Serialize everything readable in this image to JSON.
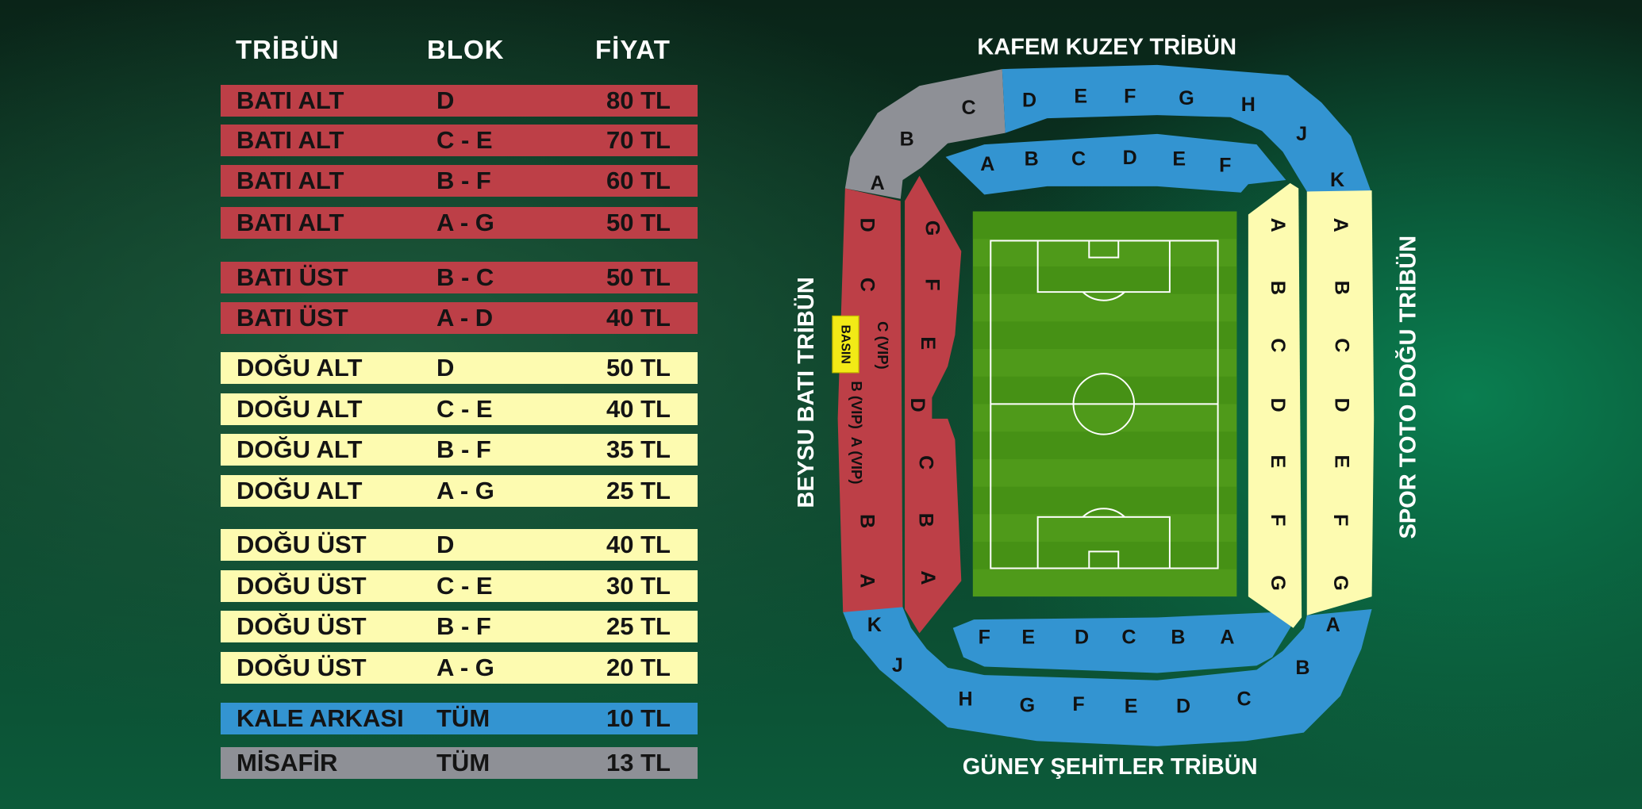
{
  "colors": {
    "bati": "#bd3f47",
    "dogu": "#fdfbb0",
    "kale_arkasi": "#3394d1",
    "misafir": "#8e9096",
    "pitch": "#4f9a1a",
    "basin": "#f2ea16"
  },
  "table": {
    "headers": {
      "tribune": "TRİBÜN",
      "block": "BLOK",
      "price": "FİYAT"
    },
    "rows": [
      {
        "tribune": "BATI ALT",
        "block": "D",
        "price": "80 TL",
        "group": "bati"
      },
      {
        "tribune": "BATI ALT",
        "block": "C - E",
        "price": "70 TL",
        "group": "bati"
      },
      {
        "tribune": "BATI ALT",
        "block": "B - F",
        "price": "60 TL",
        "group": "bati"
      },
      {
        "tribune": "BATI ALT",
        "block": "A - G",
        "price": "50 TL",
        "group": "bati"
      },
      {
        "tribune": "BATI ÜST",
        "block": "B - C",
        "price": "50 TL",
        "group": "bati"
      },
      {
        "tribune": "BATI ÜST",
        "block": "A - D",
        "price": "40 TL",
        "group": "bati"
      },
      {
        "tribune": "DOĞU ALT",
        "block": "D",
        "price": "50 TL",
        "group": "dogu"
      },
      {
        "tribune": "DOĞU ALT",
        "block": "C - E",
        "price": "40 TL",
        "group": "dogu"
      },
      {
        "tribune": "DOĞU ALT",
        "block": "B - F",
        "price": "35 TL",
        "group": "dogu"
      },
      {
        "tribune": "DOĞU ALT",
        "block": "A - G",
        "price": "25 TL",
        "group": "dogu"
      },
      {
        "tribune": "DOĞU ÜST",
        "block": "D",
        "price": "40 TL",
        "group": "dogu"
      },
      {
        "tribune": "DOĞU ÜST",
        "block": "C - E",
        "price": "30 TL",
        "group": "dogu"
      },
      {
        "tribune": "DOĞU ÜST",
        "block": "B - F",
        "price": "25 TL",
        "group": "dogu"
      },
      {
        "tribune": "DOĞU ÜST",
        "block": "A - G",
        "price": "20 TL",
        "group": "dogu"
      },
      {
        "tribune": "KALE ARKASI",
        "block": "TÜM",
        "price": "10 TL",
        "group": "kale_arkasi"
      },
      {
        "tribune": "MİSAFİR",
        "block": "TÜM",
        "price": "13 TL",
        "group": "misafir"
      }
    ]
  },
  "stadium": {
    "titles": {
      "north": "KAFEM KUZEY TRİBÜN",
      "south": "GÜNEY ŞEHİTLER TRİBÜN",
      "west": "BEYSU BATI TRİBÜN",
      "east": "SPOR TOTO DOĞU TRİBÜN"
    },
    "basin": "BASIN",
    "west_upper": [
      "D",
      "C",
      "C (VIP)",
      "B (VIP)",
      "A (VIP)",
      "B",
      "A"
    ],
    "west_lower": [
      "G",
      "F",
      "E",
      "D",
      "C",
      "B",
      "A"
    ],
    "guest": [
      "C",
      "B",
      "A"
    ],
    "north_upper": [
      "D",
      "E",
      "F",
      "G",
      "H",
      "J",
      "K"
    ],
    "north_lower": [
      "A",
      "B",
      "C",
      "D",
      "E",
      "F"
    ],
    "east_lower": [
      "A",
      "B",
      "C",
      "D",
      "E",
      "F",
      "G"
    ],
    "east_upper": [
      "A",
      "B",
      "C",
      "D",
      "E",
      "F",
      "G"
    ],
    "south_lower": [
      "F",
      "E",
      "D",
      "C",
      "B",
      "A"
    ],
    "south_upper": [
      "K",
      "J",
      "H",
      "G",
      "F",
      "E",
      "D",
      "C",
      "B",
      "A"
    ]
  }
}
